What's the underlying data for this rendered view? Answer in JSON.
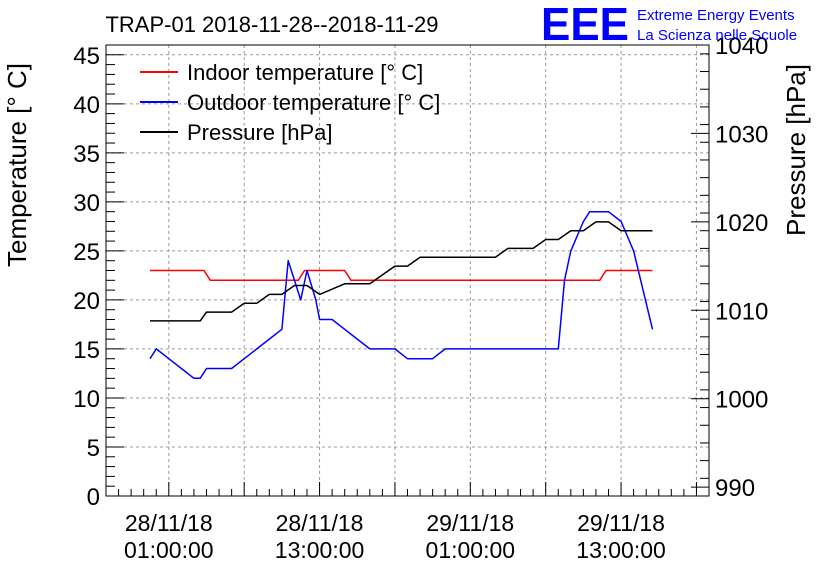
{
  "chart_data": {
    "type": "line",
    "title": "TRAP-01 2018-11-28--2018-11-29",
    "logo": {
      "text": "EEE",
      "line1": "Extreme Energy Events",
      "line2": "La Scienza nelle Scuole",
      "color": "#0000ff"
    },
    "ylabel": "Temperature [° C]",
    "y2label": "Pressure [hPa]",
    "ylim": [
      0,
      46
    ],
    "y2lim": [
      989,
      1040
    ],
    "yticks": [
      "0",
      "5",
      "10",
      "15",
      "20",
      "25",
      "30",
      "35",
      "40",
      "45"
    ],
    "y2ticks": [
      "990",
      "1000",
      "1010",
      "1020",
      "1030",
      "1040"
    ],
    "xlim": [
      -5.0,
      43.0
    ],
    "xticks": [
      {
        "t": 0,
        "line1": "28/11/18",
        "line2": "01:00:00"
      },
      {
        "t": 12,
        "line1": "28/11/18",
        "line2": "13:00:00"
      },
      {
        "t": 24,
        "line1": "29/11/18",
        "line2": "01:00:00"
      },
      {
        "t": 36,
        "line1": "29/11/18",
        "line2": "13:00:00"
      }
    ],
    "grid": true,
    "legend_position": "top-left",
    "series": [
      {
        "name": "Indoor temperature [° C]",
        "axis": "left",
        "color": "#ff0000",
        "x": [
          -1.5,
          2.8,
          3.3,
          10.3,
          10.8,
          14.0,
          14.5,
          34.3,
          34.8,
          38.5
        ],
        "y": [
          23,
          23,
          22,
          22,
          23,
          23,
          22,
          22,
          23,
          23
        ]
      },
      {
        "name": "Outdoor temperature [° C]",
        "axis": "left",
        "color": "#0000ff",
        "x": [
          -1.5,
          -1.0,
          0.0,
          1.0,
          2.0,
          2.5,
          3.0,
          4.0,
          5.0,
          6.0,
          7.0,
          8.0,
          9.0,
          9.5,
          10.5,
          11.0,
          11.7,
          12.0,
          13.0,
          14.0,
          15.0,
          16.0,
          17.0,
          18.0,
          19.0,
          20.0,
          21.0,
          22.0,
          23.0,
          24.0,
          25.0,
          26.0,
          28.0,
          30.0,
          31.0,
          31.5,
          32.0,
          33.0,
          33.5,
          34.0,
          35.0,
          36.0,
          37.0,
          38.5
        ],
        "y": [
          14,
          15,
          14,
          13,
          12,
          12,
          13,
          13,
          13,
          14,
          15,
          16,
          17,
          24,
          20,
          23,
          20,
          18,
          18,
          17,
          16,
          15,
          15,
          15,
          14,
          14,
          14,
          15,
          15,
          15,
          15,
          15,
          15,
          15,
          15,
          22,
          25,
          28,
          29,
          29,
          29,
          28,
          25,
          17
        ]
      },
      {
        "name": "Pressure [hPa]",
        "axis": "right",
        "color": "#000000",
        "x": [
          -1.5,
          2.5,
          3.0,
          5.0,
          6.0,
          7.0,
          8.0,
          9.0,
          10.0,
          11.0,
          12.0,
          14.0,
          16.0,
          17.0,
          18.0,
          19.0,
          20.0,
          21.0,
          22.0,
          23.0,
          24.0,
          25.0,
          26.0,
          27.0,
          28.0,
          29.0,
          30.0,
          31.0,
          32.0,
          33.0,
          34.0,
          35.0,
          36.0,
          38.5
        ],
        "y": [
          1008.8,
          1008.8,
          1009.8,
          1009.8,
          1010.8,
          1010.8,
          1011.8,
          1011.8,
          1012.8,
          1012.8,
          1011.8,
          1013.0,
          1013.0,
          1014.0,
          1015.0,
          1015.0,
          1016.0,
          1016.0,
          1016.0,
          1016.0,
          1016.0,
          1016.0,
          1016.0,
          1017.0,
          1017.0,
          1017.0,
          1018.0,
          1018.0,
          1019.0,
          1019.0,
          1020.0,
          1020.0,
          1019.0,
          1019.0
        ]
      }
    ]
  }
}
